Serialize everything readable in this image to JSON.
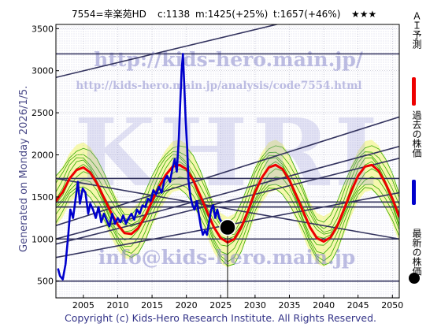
{
  "header": {
    "code_name": "7554=幸楽苑HD",
    "current": "c:1138",
    "target_m": "m:1425(+25%)",
    "target_t": "t:1657(+46%)",
    "rating": "★★★"
  },
  "side_title": "Generated on Monday 2026/1/5.",
  "watermarks": {
    "url_main": "http://kids-hero.main.jp/",
    "url_analysis": "http://kids-hero.main.jp/analysis/code7554.html",
    "logo": "KHRI",
    "email": "info@kids-hero.main.jp"
  },
  "legend": {
    "ai_forecast": "ＡＩ予測",
    "past_price": "過去の株価",
    "latest_price": "最新の株価"
  },
  "footer": "Copyright (c) Kids-Hero Research Institute. All Rights Reserved.",
  "colors": {
    "price": "#0000cc",
    "forecast": "#ee0000",
    "band_line": "#33aa00",
    "band_fill": "#f4f7a0",
    "trend_line": "#33335e",
    "latest_marker": "#000000"
  },
  "chart_data": {
    "type": "line",
    "xlim": [
      2001,
      2051
    ],
    "ylim": [
      300,
      3550
    ],
    "x_ticks": [
      2005,
      2010,
      2015,
      2020,
      2025,
      2030,
      2035,
      2040,
      2045,
      2050
    ],
    "y_ticks": [
      500,
      1000,
      1500,
      2000,
      2500,
      3000,
      3500
    ],
    "grid": true,
    "legend_position": "right",
    "latest_point": {
      "x": 2026.0,
      "y": 1138
    },
    "horizontal_lines": [
      500,
      1000,
      1380,
      1440,
      1720,
      3200
    ],
    "trend_lines": [
      {
        "x1": 2001,
        "y1": 2920,
        "x2": 2051,
        "y2": 3900
      },
      {
        "x1": 2001,
        "y1": 1160,
        "x2": 2051,
        "y2": 2450
      },
      {
        "x1": 2001,
        "y1": 1000,
        "x2": 2051,
        "y2": 2100
      },
      {
        "x1": 2001,
        "y1": 940,
        "x2": 2051,
        "y2": 1960
      },
      {
        "x1": 2001,
        "y1": 780,
        "x2": 2051,
        "y2": 1550
      },
      {
        "x1": 2001,
        "y1": 1720,
        "x2": 2051,
        "y2": 1000
      },
      {
        "x1": 2001,
        "y1": 1380,
        "x2": 2051,
        "y2": 1380
      },
      {
        "x1": 2001,
        "y1": 1440,
        "x2": 2051,
        "y2": 1440
      }
    ],
    "series": [
      {
        "name": "ＡＩ予測",
        "x": [
          2001,
          2002,
          2003,
          2004,
          2005,
          2006,
          2007,
          2008,
          2009,
          2010,
          2011,
          2012,
          2013,
          2014,
          2015,
          2016,
          2017,
          2018,
          2019,
          2020,
          2021,
          2022,
          2023,
          2024,
          2025,
          2026,
          2027,
          2028,
          2029,
          2030,
          2031,
          2032,
          2033,
          2034,
          2035,
          2036,
          2037,
          2038,
          2039,
          2040,
          2041,
          2042,
          2043,
          2044,
          2045,
          2046,
          2047,
          2048,
          2049,
          2050,
          2051
        ],
        "y": [
          1450,
          1560,
          1720,
          1820,
          1850,
          1790,
          1660,
          1490,
          1320,
          1170,
          1070,
          1060,
          1130,
          1270,
          1450,
          1620,
          1760,
          1860,
          1880,
          1830,
          1700,
          1520,
          1330,
          1140,
          1010,
          960,
          1000,
          1140,
          1340,
          1560,
          1730,
          1850,
          1880,
          1830,
          1700,
          1520,
          1330,
          1140,
          1010,
          970,
          1020,
          1160,
          1360,
          1570,
          1750,
          1860,
          1880,
          1810,
          1660,
          1480,
          1260
        ]
      },
      {
        "name": "過去の株価",
        "x": [
          2001.3,
          2001.6,
          2002.0,
          2002.4,
          2002.8,
          2003.1,
          2003.5,
          2003.9,
          2004.2,
          2004.5,
          2004.9,
          2005.3,
          2005.7,
          2006.0,
          2006.4,
          2006.8,
          2007.2,
          2007.6,
          2008.0,
          2008.4,
          2008.8,
          2009.2,
          2009.6,
          2010.0,
          2010.4,
          2010.8,
          2011.2,
          2011.6,
          2012.0,
          2012.4,
          2012.8,
          2013.2,
          2013.6,
          2014.0,
          2014.4,
          2014.8,
          2015.2,
          2015.6,
          2016.0,
          2016.4,
          2016.8,
          2017.2,
          2017.6,
          2018.0,
          2018.3,
          2018.6,
          2018.9,
          2019.1,
          2019.3,
          2019.5,
          2019.7,
          2019.9,
          2020.1,
          2020.3,
          2020.6,
          2020.9,
          2021.2,
          2021.5,
          2021.8,
          2022.1,
          2022.4,
          2022.7,
          2023.0,
          2023.3,
          2023.6,
          2023.9,
          2024.2,
          2024.5,
          2024.8,
          2025.1,
          2025.4
        ],
        "y": [
          650,
          560,
          520,
          700,
          1050,
          1350,
          1250,
          1500,
          1680,
          1420,
          1600,
          1550,
          1300,
          1420,
          1350,
          1250,
          1380,
          1200,
          1300,
          1220,
          1150,
          1300,
          1180,
          1250,
          1200,
          1280,
          1180,
          1250,
          1300,
          1230,
          1350,
          1300,
          1400,
          1380,
          1480,
          1450,
          1580,
          1530,
          1620,
          1550,
          1700,
          1750,
          1680,
          1850,
          1950,
          1800,
          2200,
          2600,
          3000,
          3200,
          2800,
          2400,
          2100,
          1700,
          1500,
          1400,
          1350,
          1450,
          1300,
          1150,
          1050,
          1100,
          1050,
          1200,
          1350,
          1400,
          1250,
          1350,
          1250,
          1200,
          1160
        ]
      }
    ]
  }
}
